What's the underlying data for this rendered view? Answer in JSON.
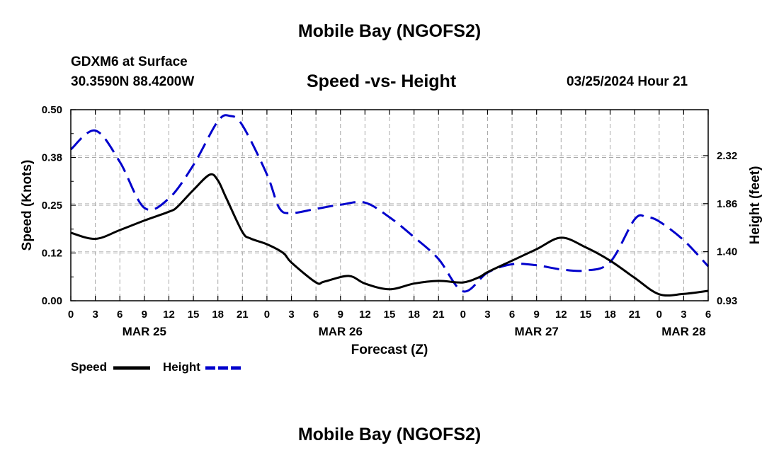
{
  "header": {
    "title": "Mobile Bay (NGOFS2)",
    "station": "GDXM6 at Surface",
    "coords": "30.3590N  88.4200W",
    "subtitle": "Speed -vs- Height",
    "datetime": "03/25/2024 Hour 21"
  },
  "footer": {
    "title": "Mobile Bay (NGOFS2)"
  },
  "legend": {
    "speed_label": "Speed",
    "height_label": "Height",
    "speed_color": "#000000",
    "height_color": "#0000cc"
  },
  "chart_data": {
    "type": "line",
    "title": "Speed -vs- Height",
    "xlabel": "Forecast (Z)",
    "ylabel_left": "Speed (Knots)",
    "ylabel_right": "Height (feet)",
    "x_unit": "hours since 03/25 00Z",
    "xlim": [
      0,
      78
    ],
    "x_ticks": [
      0,
      3,
      6,
      9,
      12,
      15,
      18,
      21,
      24,
      27,
      30,
      33,
      36,
      39,
      42,
      45,
      48,
      51,
      54,
      57,
      60,
      63,
      66,
      69,
      72,
      75,
      78
    ],
    "x_tick_labels": [
      "0",
      "3",
      "6",
      "9",
      "12",
      "15",
      "18",
      "21",
      "0",
      "3",
      "6",
      "9",
      "12",
      "15",
      "18",
      "21",
      "0",
      "3",
      "6",
      "9",
      "12",
      "15",
      "18",
      "21",
      "0",
      "3",
      "6"
    ],
    "date_labels": [
      {
        "x": 9,
        "label": "MAR 25"
      },
      {
        "x": 33,
        "label": "MAR 26"
      },
      {
        "x": 57,
        "label": "MAR 27"
      },
      {
        "x": 75,
        "label": "MAR 28"
      }
    ],
    "ylim_left": [
      0,
      0.5
    ],
    "y_ticks_left": [
      0,
      0.125,
      0.25,
      0.375,
      0.5
    ],
    "y_tick_labels_left": [
      "0.00",
      "0.12",
      "0.25",
      "0.38",
      "0.50"
    ],
    "ylim_right": [
      0.93,
      2.76
    ],
    "y_ticks_right": [
      0.93,
      1.4,
      1.86,
      2.32
    ],
    "y_tick_labels_right": [
      "0.93",
      "1.40",
      "1.86",
      "2.32"
    ],
    "grid": true,
    "series": [
      {
        "name": "Speed",
        "axis": "left",
        "style": "solid",
        "color": "#000000",
        "x": [
          0,
          3,
          6,
          9,
          12,
          13,
          15,
          17,
          18,
          19,
          21,
          22,
          24,
          26,
          27,
          30,
          31,
          34,
          36,
          39,
          42,
          45,
          48,
          50,
          51,
          54,
          57,
          60,
          63,
          66,
          69,
          72,
          75,
          78
        ],
        "y": [
          0.178,
          0.162,
          0.185,
          0.21,
          0.233,
          0.245,
          0.29,
          0.33,
          0.315,
          0.27,
          0.18,
          0.163,
          0.148,
          0.125,
          0.1,
          0.048,
          0.05,
          0.065,
          0.045,
          0.03,
          0.045,
          0.052,
          0.048,
          0.062,
          0.075,
          0.105,
          0.135,
          0.165,
          0.14,
          0.105,
          0.06,
          0.017,
          0.018,
          0.026
        ]
      },
      {
        "name": "Height",
        "axis": "right",
        "style": "dashed",
        "color": "#0000cc",
        "x": [
          0,
          3,
          6,
          9,
          12,
          15,
          18,
          19.5,
          21,
          24,
          25.5,
          27,
          30,
          33,
          36,
          39,
          42,
          45,
          48,
          51,
          54,
          57,
          60,
          63,
          66,
          69,
          70.5,
          72,
          75,
          78
        ],
        "y": [
          2.38,
          2.56,
          2.26,
          1.82,
          1.91,
          2.23,
          2.65,
          2.7,
          2.61,
          2.14,
          1.82,
          1.77,
          1.81,
          1.85,
          1.87,
          1.73,
          1.54,
          1.33,
          1.02,
          1.2,
          1.28,
          1.27,
          1.23,
          1.22,
          1.3,
          1.71,
          1.73,
          1.69,
          1.51,
          1.26
        ]
      }
    ]
  }
}
